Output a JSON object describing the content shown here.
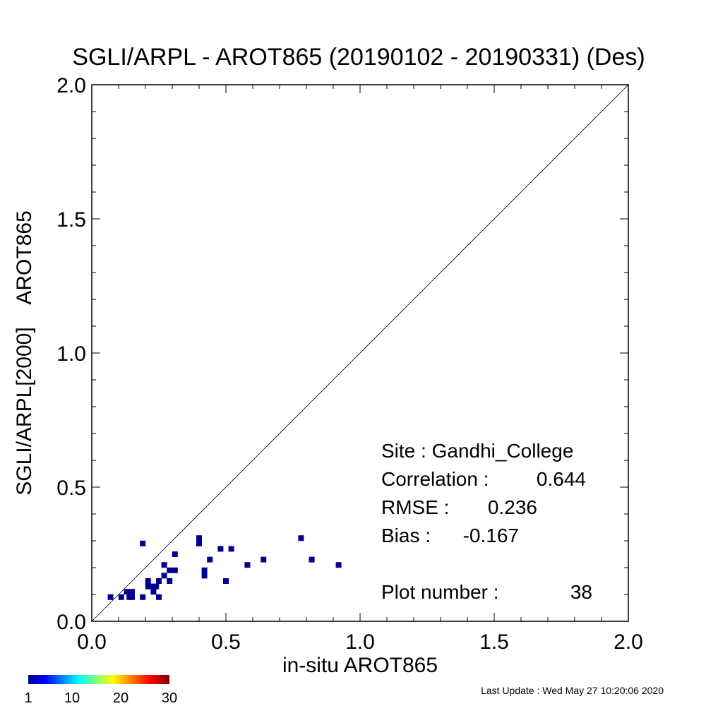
{
  "chart_data": {
    "type": "scatter",
    "title": "SGLI/ARPL - AROT865 (20190102 - 20190331) (Des)",
    "xlabel": "in-situ AROT865",
    "ylabel": "SGLI/ARPL[2000]    AROT865",
    "xlim": [
      0.0,
      2.0
    ],
    "ylim": [
      0.0,
      2.0
    ],
    "x_ticks": [
      "0.0",
      "0.5",
      "1.0",
      "1.5",
      "2.0"
    ],
    "y_ticks": [
      "0.0",
      "0.5",
      "1.0",
      "1.5",
      "2.0"
    ],
    "reference_line": "1:1",
    "grid": false,
    "point_color": "#00008f",
    "points": [
      {
        "x": 0.07,
        "y": 0.09
      },
      {
        "x": 0.11,
        "y": 0.09
      },
      {
        "x": 0.13,
        "y": 0.11
      },
      {
        "x": 0.14,
        "y": 0.09
      },
      {
        "x": 0.15,
        "y": 0.11
      },
      {
        "x": 0.15,
        "y": 0.09
      },
      {
        "x": 0.19,
        "y": 0.29
      },
      {
        "x": 0.19,
        "y": 0.09
      },
      {
        "x": 0.21,
        "y": 0.15
      },
      {
        "x": 0.21,
        "y": 0.13
      },
      {
        "x": 0.22,
        "y": 0.13
      },
      {
        "x": 0.23,
        "y": 0.11
      },
      {
        "x": 0.24,
        "y": 0.13
      },
      {
        "x": 0.25,
        "y": 0.15
      },
      {
        "x": 0.25,
        "y": 0.09
      },
      {
        "x": 0.27,
        "y": 0.21
      },
      {
        "x": 0.27,
        "y": 0.17
      },
      {
        "x": 0.29,
        "y": 0.19
      },
      {
        "x": 0.29,
        "y": 0.15
      },
      {
        "x": 0.31,
        "y": 0.25
      },
      {
        "x": 0.31,
        "y": 0.19
      },
      {
        "x": 0.4,
        "y": 0.31
      },
      {
        "x": 0.4,
        "y": 0.29
      },
      {
        "x": 0.42,
        "y": 0.19
      },
      {
        "x": 0.42,
        "y": 0.17
      },
      {
        "x": 0.44,
        "y": 0.23
      },
      {
        "x": 0.48,
        "y": 0.27
      },
      {
        "x": 0.5,
        "y": 0.15
      },
      {
        "x": 0.52,
        "y": 0.27
      },
      {
        "x": 0.58,
        "y": 0.21
      },
      {
        "x": 0.64,
        "y": 0.23
      },
      {
        "x": 0.78,
        "y": 0.31
      },
      {
        "x": 0.82,
        "y": 0.23
      },
      {
        "x": 0.92,
        "y": 0.21
      }
    ],
    "stats": {
      "site_label": "Site : Gandhi_College",
      "correlation_label": "Correlation :",
      "correlation_value": "0.644",
      "rmse_label": "RMSE :",
      "rmse_value": "0.236",
      "bias_label": "Bias :",
      "bias_value": "-0.167",
      "plot_number_label": "Plot number :",
      "plot_number_value": "38"
    },
    "colorbar": {
      "ticks": [
        "1",
        "10",
        "20",
        "30"
      ],
      "range": [
        1,
        30
      ],
      "colormap": "jet"
    }
  },
  "footer": {
    "last_update": "Last Update : Wed May 27 10:20:06 2020"
  }
}
